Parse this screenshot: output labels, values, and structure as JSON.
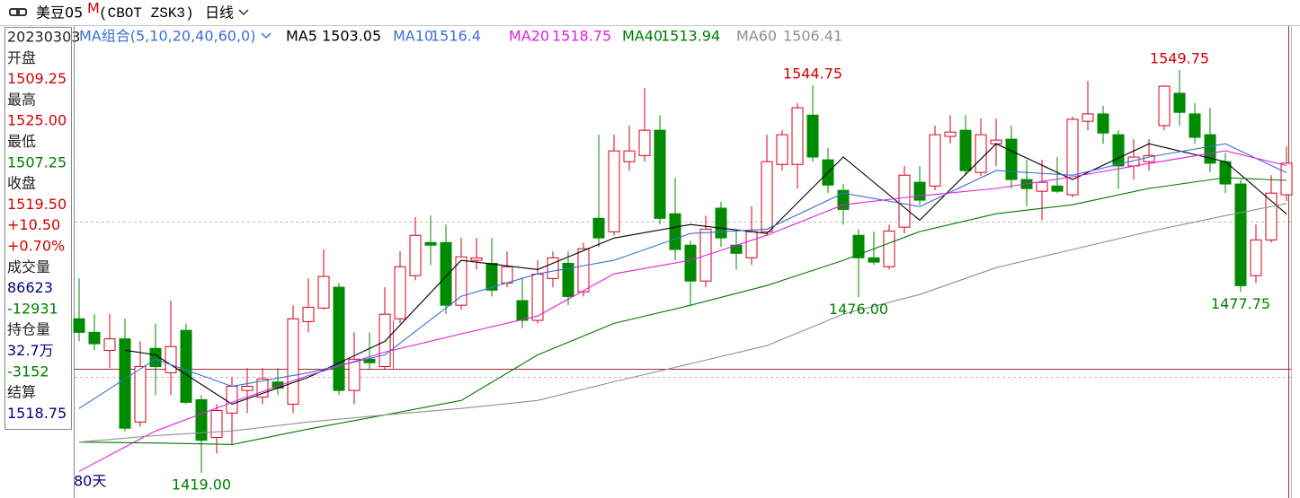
{
  "toolbar": {
    "symbol": "美豆05",
    "badge": "M",
    "code": "(CBOT ZSK3)",
    "period": "日线"
  },
  "info_panel": {
    "items": [
      {
        "text": "20230303",
        "color": "#222222"
      },
      {
        "text": "开盘",
        "color": "#222222"
      },
      {
        "text": "1509.25",
        "color": "#d40000"
      },
      {
        "text": "最高",
        "color": "#222222"
      },
      {
        "text": "1525.00",
        "color": "#d40000"
      },
      {
        "text": "最低",
        "color": "#222222"
      },
      {
        "text": "1507.25",
        "color": "#008000"
      },
      {
        "text": "收盘",
        "color": "#222222"
      },
      {
        "text": "1519.50",
        "color": "#d40000"
      },
      {
        "text": "+10.50",
        "color": "#d40000"
      },
      {
        "text": "+0.70%",
        "color": "#d40000"
      },
      {
        "text": "成交量",
        "color": "#222222"
      },
      {
        "text": "86623",
        "color": "#000080"
      },
      {
        "text": "-12931",
        "color": "#008000"
      },
      {
        "text": "持仓量",
        "color": "#222222"
      },
      {
        "text": "32.7万",
        "color": "#000080"
      },
      {
        "text": "-3152",
        "color": "#008000"
      },
      {
        "text": "结算",
        "color": "#222222"
      },
      {
        "text": "1518.75",
        "color": "#000080"
      }
    ]
  },
  "chart_data": {
    "type": "candlestick",
    "indicator_title": "MA组合(5,10,20,40,60,0)",
    "indicator_title_color": "#3a6fd8",
    "range_label": "80天",
    "up_color": "#d6001c",
    "down_color": "#008a00",
    "open": [
      1469,
      1464.6,
      1458.75,
      1462.5,
      1435.5,
      1459.4,
      1451.5,
      1465.25,
      1442.75,
      1430.5,
      1438.4,
      1445.75,
      1443.6,
      1448.5,
      1441.3,
      1468.1,
      1472.5,
      1479.25,
      1445.75,
      1455.9,
      1453.5,
      1469,
      1483,
      1493.75,
      1493.75,
      1473.4,
      1488,
      1487,
      1480.6,
      1474.9,
      1468.5,
      1482.1,
      1487,
      1477.75,
      1501.6,
      1497.25,
      1520,
      1522,
      1530.2,
      1503.1,
      1492.9,
      1481.25,
      1504.9,
      1492.9,
      1488.8,
      1497.25,
      1519.1,
      1519.1,
      1535.1,
      1520.6,
      1510.7,
      1496.1,
      1488.8,
      1485.9,
      1498.75,
      1513.3,
      1512.1,
      1528.2,
      1530.2,
      1516.5,
      1525.8,
      1527.3,
      1514.2,
      1510.4,
      1512.1,
      1509.25,
      1533.1,
      1535.5,
      1528.75,
      1518.6,
      1520,
      1531.7,
      1542.2,
      1535.5,
      1528.75,
      1520,
      1512.75,
      1483,
      1494.6,
      1509.25
    ],
    "high": [
      1482.1,
      1470.5,
      1470.5,
      1469,
      1461.75,
      1467.5,
      1474.9,
      1467.5,
      1444.25,
      1441.3,
      1450,
      1453,
      1453,
      1453,
      1473.4,
      1482.1,
      1491.5,
      1480.6,
      1464.6,
      1464.6,
      1479.25,
      1490.9,
      1502,
      1502.5,
      1499.6,
      1495.25,
      1495.25,
      1495.25,
      1490.9,
      1482.1,
      1488,
      1490.9,
      1490.9,
      1493.75,
      1528.75,
      1528.75,
      1531.7,
      1543.9,
      1535.1,
      1514.75,
      1494.4,
      1502.5,
      1506.9,
      1498.1,
      1505.5,
      1528.75,
      1530.2,
      1539,
      1544.75,
      1524.4,
      1512.75,
      1498.1,
      1497.25,
      1499.6,
      1518.6,
      1518.6,
      1531.7,
      1535.1,
      1535.1,
      1534,
      1534,
      1531.7,
      1520.6,
      1520.6,
      1521.5,
      1534.6,
      1546.25,
      1538.1,
      1530.2,
      1527.3,
      1527.3,
      1544.8,
      1549.75,
      1539,
      1537.5,
      1522.9,
      1514.2,
      1499.6,
      1515.6,
      1525
    ],
    "low": [
      1461.75,
      1458.75,
      1453,
      1432.5,
      1434,
      1444.25,
      1444.25,
      1441.3,
      1419,
      1425.25,
      1428.1,
      1438.4,
      1441.3,
      1444.25,
      1438.4,
      1464.6,
      1472,
      1444.25,
      1441.3,
      1452.4,
      1452.4,
      1467.5,
      1481.5,
      1486.5,
      1470.5,
      1472,
      1485,
      1476.25,
      1479.25,
      1466,
      1467.5,
      1479.25,
      1473.4,
      1476.25,
      1492.3,
      1496.1,
      1517.1,
      1520,
      1499.6,
      1488,
      1473.4,
      1479.25,
      1492.3,
      1485,
      1486.5,
      1496.1,
      1517.1,
      1511.25,
      1520,
      1509.8,
      1499.6,
      1476,
      1486.5,
      1485,
      1496.7,
      1506,
      1510.7,
      1525.8,
      1515.6,
      1515.3,
      1518.6,
      1511.25,
      1505.5,
      1501,
      1509.8,
      1508.4,
      1530.2,
      1525.8,
      1511.25,
      1514.2,
      1517.1,
      1530.2,
      1531.7,
      1525.8,
      1516.5,
      1509.8,
      1477.75,
      1480.6,
      1493.75,
      1507.25
    ],
    "close": [
      1464.6,
      1460.9,
      1462.5,
      1433.5,
      1453.5,
      1453.5,
      1460,
      1441.9,
      1429.6,
      1439.25,
      1447.1,
      1447.1,
      1449.5,
      1446.5,
      1469,
      1472.75,
      1482.75,
      1445.75,
      1455.9,
      1454.75,
      1470.5,
      1485.9,
      1496.1,
      1492.9,
      1473.4,
      1489.1,
      1488.8,
      1478.3,
      1485.9,
      1468.5,
      1483.5,
      1488.8,
      1476.25,
      1491.75,
      1495.25,
      1523.5,
      1523.5,
      1530.2,
      1501.6,
      1491.5,
      1481.25,
      1498.1,
      1495.25,
      1490.25,
      1497.25,
      1520,
      1528.75,
      1537.5,
      1521.5,
      1512.4,
      1504.5,
      1488.8,
      1487.4,
      1497.5,
      1515.6,
      1507.5,
      1528.75,
      1529.6,
      1517.1,
      1528.75,
      1527,
      1514.2,
      1511.25,
      1513.3,
      1510.4,
      1533.75,
      1535.5,
      1529.3,
      1518.6,
      1521.5,
      1522,
      1544.5,
      1536,
      1527.9,
      1519.5,
      1512.75,
      1479.75,
      1494.6,
      1509.8,
      1519.5
    ],
    "series": [
      {
        "name": "MA5",
        "color": "#000000",
        "x": [
          3,
          5,
          10,
          15,
          20,
          25,
          30,
          35,
          40,
          45,
          50,
          55,
          60,
          65,
          70,
          75,
          79
        ],
        "values": [
          1458.8,
          1457.3,
          1441.3,
          1450.0,
          1461.7,
          1488.0,
          1485.0,
          1495.2,
          1499.6,
          1496.7,
          1521.5,
          1501.0,
          1525.8,
          1514.2,
          1525.8,
          1520.0,
          1503.05
        ]
      },
      {
        "name": "MA10",
        "color": "#3a6fd8",
        "x": [
          0,
          5,
          10,
          15,
          20,
          25,
          30,
          35,
          40,
          45,
          50,
          55,
          60,
          65,
          70,
          75,
          79
        ],
        "values": [
          1439.9,
          1455.9,
          1447.1,
          1451.5,
          1457.3,
          1476.3,
          1483.6,
          1488.0,
          1496.7,
          1498.1,
          1509.8,
          1505.4,
          1517.1,
          1515.6,
          1521.5,
          1525.8,
          1516.4
        ]
      },
      {
        "name": "MA20",
        "color": "#e020e0",
        "x": [
          0,
          5,
          10,
          15,
          20,
          25,
          30,
          35,
          40,
          45,
          50,
          55,
          60,
          65,
          70,
          75,
          79
        ],
        "values": [
          1419.5,
          1432.6,
          1441.9,
          1450.6,
          1458.2,
          1464.1,
          1469.9,
          1483.6,
          1488.0,
          1496.1,
          1506.0,
          1508.9,
          1511.3,
          1515.1,
          1519.4,
          1523.5,
          1518.75
        ]
      },
      {
        "name": "MA40",
        "color": "#007a00",
        "x": [
          0,
          5,
          10,
          15,
          20,
          25,
          30,
          35,
          40,
          45,
          50,
          55,
          60,
          65,
          70,
          75,
          79
        ],
        "values": [
          1429.0,
          1428.7,
          1428.2,
          1433.2,
          1437.8,
          1442.5,
          1457.3,
          1467.5,
          1473.4,
          1479.8,
          1488.0,
          1497.3,
          1503.1,
          1506.0,
          1511.3,
          1514.8,
          1513.94
        ]
      },
      {
        "name": "MA60",
        "color": "#909090",
        "x": [
          0,
          5,
          10,
          15,
          20,
          25,
          30,
          35,
          40,
          45,
          50,
          55,
          60,
          65,
          70,
          75,
          79
        ],
        "values": [
          1429.0,
          1431.1,
          1432.6,
          1435.5,
          1437.8,
          1439.9,
          1442.5,
          1448.6,
          1454.4,
          1460.3,
          1470.5,
          1476.9,
          1485.6,
          1491.5,
          1497.3,
          1502.5,
          1506.41
        ]
      }
    ],
    "high_label_color": "#d40000",
    "low_label_color": "#008000",
    "annotations": [
      {
        "value": 1549.75,
        "label": "1549.75"
      },
      {
        "value": 1544.75,
        "label": "1544.75"
      },
      {
        "value": 1476,
        "label": "1476.00"
      },
      {
        "value": 1477.75,
        "label": "1477.75"
      },
      {
        "value": 1419,
        "label": "1419.00"
      }
    ]
  }
}
